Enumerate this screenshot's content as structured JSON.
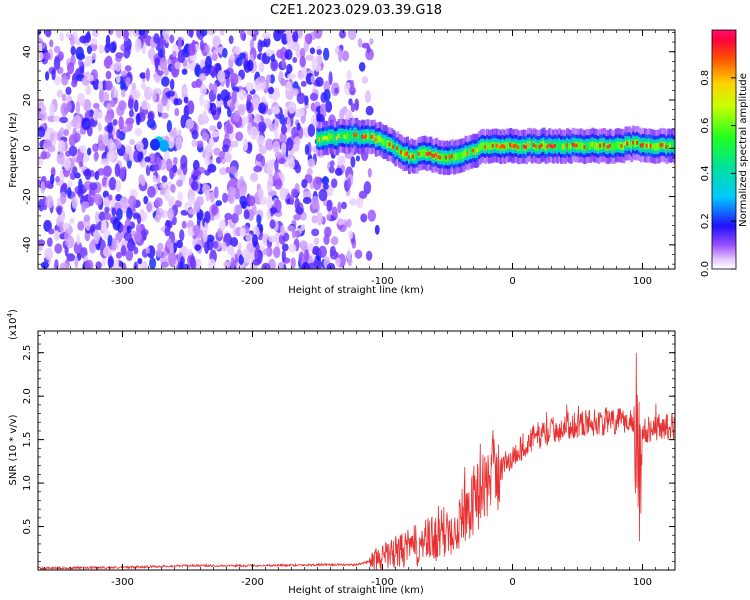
{
  "chart_data": [
    {
      "type": "heatmap",
      "title": "C2E1.2023.029.03.39.G18",
      "xlabel": "Height of straight line (km)",
      "ylabel": "Frequency (Hz)",
      "xlim": [
        -365,
        125
      ],
      "ylim": [
        -50,
        49
      ],
      "xticks": [
        -300,
        -200,
        -100,
        0,
        100
      ],
      "yticks": [
        -40,
        -20,
        0,
        20,
        40
      ],
      "xtick_labels": [
        "-300",
        "-200",
        "-100",
        "0",
        "100"
      ],
      "ytick_labels": [
        "-40",
        "-20",
        "0",
        "20",
        "40"
      ],
      "colorbar": {
        "label": "Normalized spectral amplitude",
        "range": [
          0,
          1
        ],
        "ticks": [
          0.0,
          0.2,
          0.4,
          0.6,
          0.8
        ],
        "tick_labels": [
          "0.0",
          "0.2",
          "0.4",
          "0.6",
          "0.8"
        ]
      },
      "noise_region_x": [
        -365,
        -120
      ],
      "signal_trace": {
        "x": [
          -150,
          -130,
          -110,
          -100,
          -90,
          -80,
          -75,
          -70,
          -60,
          -50,
          -40,
          -30,
          -20,
          -10,
          0,
          20,
          50,
          80,
          95,
          100,
          125
        ],
        "y": [
          4,
          5,
          5,
          3,
          0,
          -3,
          -4,
          -2,
          -3,
          -4,
          -3,
          -1,
          1,
          1,
          1,
          1,
          1,
          1,
          2,
          1,
          1
        ]
      }
    },
    {
      "type": "line",
      "title": "",
      "xlabel": "Height of straight line (km)",
      "ylabel": "SNR (10 * v/v)",
      "y_multiplier": "(x10",
      "y_multiplier_exp": "4",
      "y_multiplier_close": ")",
      "xlim": [
        -365,
        125
      ],
      "ylim": [
        0.0,
        2.75
      ],
      "xticks": [
        -300,
        -200,
        -100,
        0,
        100
      ],
      "yticks": [
        0.5,
        1.0,
        1.5,
        2.0,
        2.5
      ],
      "xtick_labels": [
        "-300",
        "-200",
        "-100",
        "0",
        "100"
      ],
      "ytick_labels": [
        "0.5",
        "1.0",
        "1.5",
        "2.0",
        "2.5"
      ],
      "series": [
        {
          "name": "SNR",
          "color": "#e83030",
          "x": [
            -365,
            -300,
            -250,
            -200,
            -150,
            -120,
            -110,
            -100,
            -90,
            -80,
            -70,
            -60,
            -50,
            -40,
            -30,
            -20,
            -10,
            0,
            10,
            20,
            30,
            40,
            50,
            60,
            70,
            80,
            90,
            95,
            97,
            100,
            110,
            125
          ],
          "y": [
            0.02,
            0.03,
            0.05,
            0.05,
            0.06,
            0.06,
            0.1,
            0.15,
            0.2,
            0.25,
            0.3,
            0.35,
            0.45,
            0.6,
            0.8,
            1.0,
            1.15,
            1.3,
            1.45,
            1.55,
            1.6,
            1.65,
            1.68,
            1.7,
            1.7,
            1.7,
            1.72,
            1.75,
            0.3,
            1.6,
            1.65,
            1.65
          ]
        }
      ]
    }
  ]
}
